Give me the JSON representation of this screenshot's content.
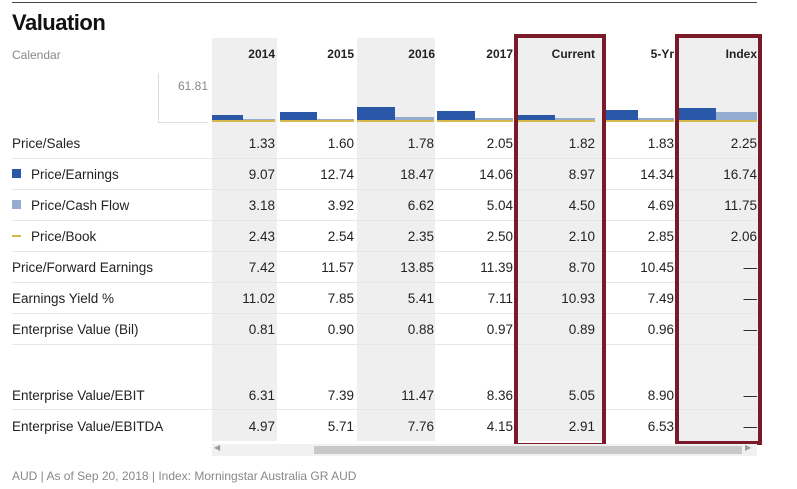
{
  "title": "Valuation",
  "calendar_label": "Calendar",
  "axis_value": "61.81",
  "columns": [
    "2014",
    "2015",
    "2016",
    "2017",
    "Current",
    "5-Yr",
    "Index"
  ],
  "rows": [
    {
      "label": "Price/Sales",
      "legend": "",
      "values": [
        "1.33",
        "1.60",
        "1.78",
        "2.05",
        "1.82",
        "1.83",
        "2.25"
      ]
    },
    {
      "label": "Price/Earnings",
      "legend": "pe",
      "values": [
        "9.07",
        "12.74",
        "18.47",
        "14.06",
        "8.97",
        "14.34",
        "16.74"
      ]
    },
    {
      "label": "Price/Cash Flow",
      "legend": "pcf",
      "values": [
        "3.18",
        "3.92",
        "6.62",
        "5.04",
        "4.50",
        "4.69",
        "11.75"
      ]
    },
    {
      "label": "Price/Book",
      "legend": "pb",
      "values": [
        "2.43",
        "2.54",
        "2.35",
        "2.50",
        "2.10",
        "2.85",
        "2.06"
      ]
    },
    {
      "label": "Price/Forward Earnings",
      "legend": "",
      "values": [
        "7.42",
        "11.57",
        "13.85",
        "11.39",
        "8.70",
        "10.45",
        "—"
      ]
    },
    {
      "label": "Earnings Yield %",
      "legend": "",
      "values": [
        "11.02",
        "7.85",
        "5.41",
        "7.11",
        "10.93",
        "7.49",
        "—"
      ]
    },
    {
      "label": "Enterprise Value (Bil)",
      "legend": "",
      "values": [
        "0.81",
        "0.90",
        "0.88",
        "0.97",
        "0.89",
        "0.96",
        "—"
      ]
    },
    {
      "label": "Enterprise Value/EBIT",
      "legend": "",
      "values": [
        "6.31",
        "7.39",
        "11.47",
        "8.36",
        "5.05",
        "8.90",
        "—"
      ]
    },
    {
      "label": "Enterprise Value/EBITDA",
      "legend": "",
      "values": [
        "4.97",
        "5.71",
        "7.76",
        "4.15",
        "2.91",
        "6.53",
        "—"
      ]
    }
  ],
  "colors": {
    "price_earnings": "#2b57a8",
    "price_cash_flow": "#93acd0",
    "price_book": "#d7b84b",
    "highlight_box": "#7a1a28"
  },
  "chart_data": {
    "type": "bar",
    "categories": [
      "2014",
      "2015",
      "2016",
      "2017",
      "Current",
      "5-Yr",
      "Index"
    ],
    "series": [
      {
        "name": "Price/Earnings",
        "values": [
          9.07,
          12.74,
          18.47,
          14.06,
          8.97,
          14.34,
          16.74
        ]
      },
      {
        "name": "Price/Cash Flow",
        "values": [
          3.18,
          3.92,
          6.62,
          5.04,
          4.5,
          4.69,
          11.75
        ]
      },
      {
        "name": "Price/Book",
        "values": [
          2.43,
          2.54,
          2.35,
          2.5,
          2.1,
          2.85,
          2.06
        ]
      }
    ],
    "ylim": [
      0,
      61.81
    ]
  },
  "footer": "AUD | As of Sep 20, 2018 | Index: Morningstar Australia GR AUD"
}
